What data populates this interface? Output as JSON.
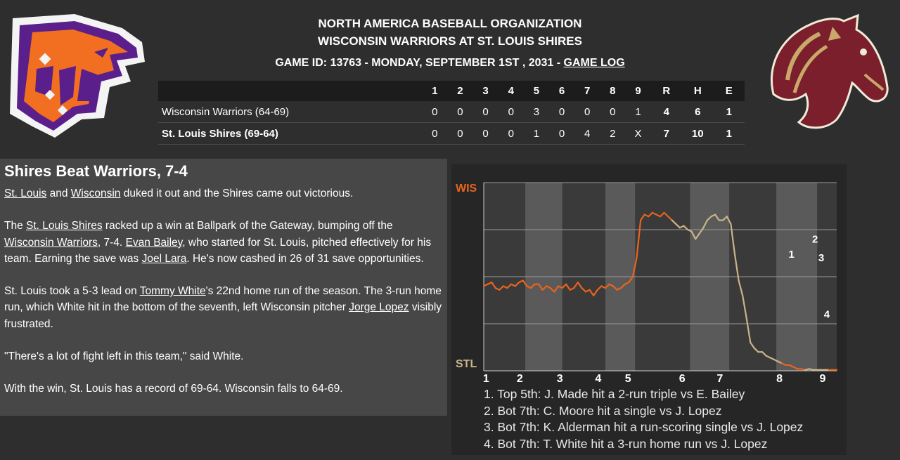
{
  "header": {
    "league": "NORTH AMERICA BASEBALL ORGANIZATION",
    "matchup": "WISCONSIN WARRIORS AT ST. LOUIS SHIRES",
    "game_info": "GAME ID: 13763 - MONDAY, SEPTEMBER 1ST , 2031 - ",
    "game_log_link": "GAME LOG"
  },
  "linescore": {
    "innings": [
      "1",
      "2",
      "3",
      "4",
      "5",
      "6",
      "7",
      "8",
      "9"
    ],
    "totals_headers": [
      "R",
      "H",
      "E"
    ],
    "rows": [
      {
        "team": "Wisconsin Warriors (64-69)",
        "innings": [
          "0",
          "0",
          "0",
          "0",
          "3",
          "0",
          "0",
          "0",
          "1"
        ],
        "r": "4",
        "h": "6",
        "e": "1"
      },
      {
        "team": "St. Louis Shires (69-64)",
        "innings": [
          "0",
          "0",
          "0",
          "0",
          "1",
          "0",
          "4",
          "2",
          "X"
        ],
        "r": "7",
        "h": "10",
        "e": "1"
      }
    ]
  },
  "recap": {
    "headline": "Shires Beat Warriors, 7-4",
    "p1": {
      "a": "St. Louis",
      "b": " and ",
      "c": "Wisconsin",
      "d": " duked it out and the Shires came out victorious."
    },
    "p2": {
      "a": "The ",
      "b": "St. Louis Shires",
      "c": " racked up a win at Ballpark of the Gateway, bumping off the ",
      "d": "Wisconsin Warriors",
      "e": ", 7-4. ",
      "f": "Evan Bailey",
      "g": ", who started for St. Louis, pitched effectively for his team. Earning the save was ",
      "h": "Joel Lara",
      "i": ". He's now cashed in 26 of 31 save opportunities."
    },
    "p3": {
      "a": "St. Louis took a 5-3 lead on ",
      "b": "Tommy White",
      "c": "'s 22nd home run of the season. The 3-run home run, which White hit in the bottom of the seventh, left Wisconsin pitcher ",
      "d": "Jorge Lopez",
      "e": " visibly frustrated."
    },
    "p4": "\"There's a lot of fight left in this team,\" said White.",
    "p5": "With the win, St. Louis has a record of 69-64. Wisconsin falls to 64-69."
  },
  "chart_data": {
    "type": "line",
    "top_label": "WIS",
    "bottom_label": "STL",
    "y_meaning": "away win probability",
    "ylim": [
      0,
      1
    ],
    "grid": true,
    "inning_labels": [
      "1",
      "2",
      "3",
      "4",
      "5",
      "6",
      "7",
      "8",
      "9"
    ],
    "x": [
      0,
      0.5,
      1,
      1.5,
      2,
      2.5,
      3,
      3.5,
      4,
      4.5,
      5,
      5.5,
      6,
      6.5,
      7,
      7.5,
      8,
      8.5,
      9,
      9.5,
      10,
      10.5,
      11,
      11.5,
      12,
      12.5,
      13,
      13.5,
      14,
      14.5,
      15,
      15.5,
      16,
      16.5,
      17,
      17.5,
      18,
      18.5,
      19,
      19.5,
      20,
      20.5,
      21,
      21.5,
      22,
      22.5,
      23,
      23.5,
      24,
      24.5,
      25,
      25.5,
      26,
      26.5,
      27,
      27.5,
      28,
      28.5,
      29,
      29.5,
      30,
      30.5,
      31,
      31.5,
      32,
      32.5,
      33,
      33.5,
      34,
      34.5,
      35,
      35.5,
      36,
      36.5,
      37,
      37.5,
      38,
      38.5,
      39,
      39.5,
      40,
      40.5,
      41,
      41.5,
      42,
      42.5,
      43,
      43.5,
      44,
      44.5,
      45
    ],
    "away_win_prob": [
      0.45,
      0.46,
      0.47,
      0.44,
      0.43,
      0.45,
      0.44,
      0.46,
      0.45,
      0.47,
      0.48,
      0.45,
      0.44,
      0.46,
      0.46,
      0.43,
      0.45,
      0.44,
      0.42,
      0.45,
      0.44,
      0.46,
      0.43,
      0.44,
      0.47,
      0.44,
      0.42,
      0.43,
      0.4,
      0.43,
      0.45,
      0.44,
      0.46,
      0.45,
      0.43,
      0.44,
      0.46,
      0.47,
      0.5,
      0.6,
      0.8,
      0.83,
      0.82,
      0.84,
      0.83,
      0.82,
      0.84,
      0.82,
      0.8,
      0.78,
      0.76,
      0.77,
      0.75,
      0.74,
      0.7,
      0.73,
      0.76,
      0.8,
      0.82,
      0.83,
      0.8,
      0.8,
      0.82,
      0.78,
      0.62,
      0.48,
      0.4,
      0.28,
      0.15,
      0.12,
      0.1,
      0.1,
      0.08,
      0.07,
      0.06,
      0.05,
      0.04,
      0.03,
      0.03,
      0.02,
      0.01,
      0.01,
      0.005,
      0.01,
      0.005,
      0.005,
      0.005,
      0.005,
      0.005,
      0.005,
      0.005
    ],
    "away_segments": [
      [
        0,
        24
      ],
      [
        38,
        41
      ],
      [
        44,
        45
      ]
    ],
    "inning_bands": [
      [
        5.3,
        10.0
      ],
      [
        15.5,
        19.3
      ],
      [
        26.3,
        31.3
      ],
      [
        37.3,
        42.5
      ]
    ],
    "annotations": [
      {
        "label": "1",
        "x": 38.5,
        "prob": 0.62
      },
      {
        "label": "2",
        "x": 41.5,
        "prob": 0.7
      },
      {
        "label": "3",
        "x": 42.3,
        "prob": 0.6
      },
      {
        "label": "4",
        "x": 43.0,
        "prob": 0.3
      }
    ],
    "events": [
      "1. Top 5th: J. Made hit a 2-run triple vs E. Bailey",
      "2. Bot 7th: C. Moore hit a single vs J. Lopez",
      "3. Bot 7th: K. Alderman hit a run-scoring single vs J. Lopez",
      "4. Bot 7th: T. White hit a 3-run home run vs J. Lopez"
    ],
    "colors": {
      "away": "#e8641e",
      "home": "#c9b48a",
      "band": "#5a5a5a",
      "bg": "#3a3a3a",
      "grid": "#9a9a9a"
    }
  }
}
